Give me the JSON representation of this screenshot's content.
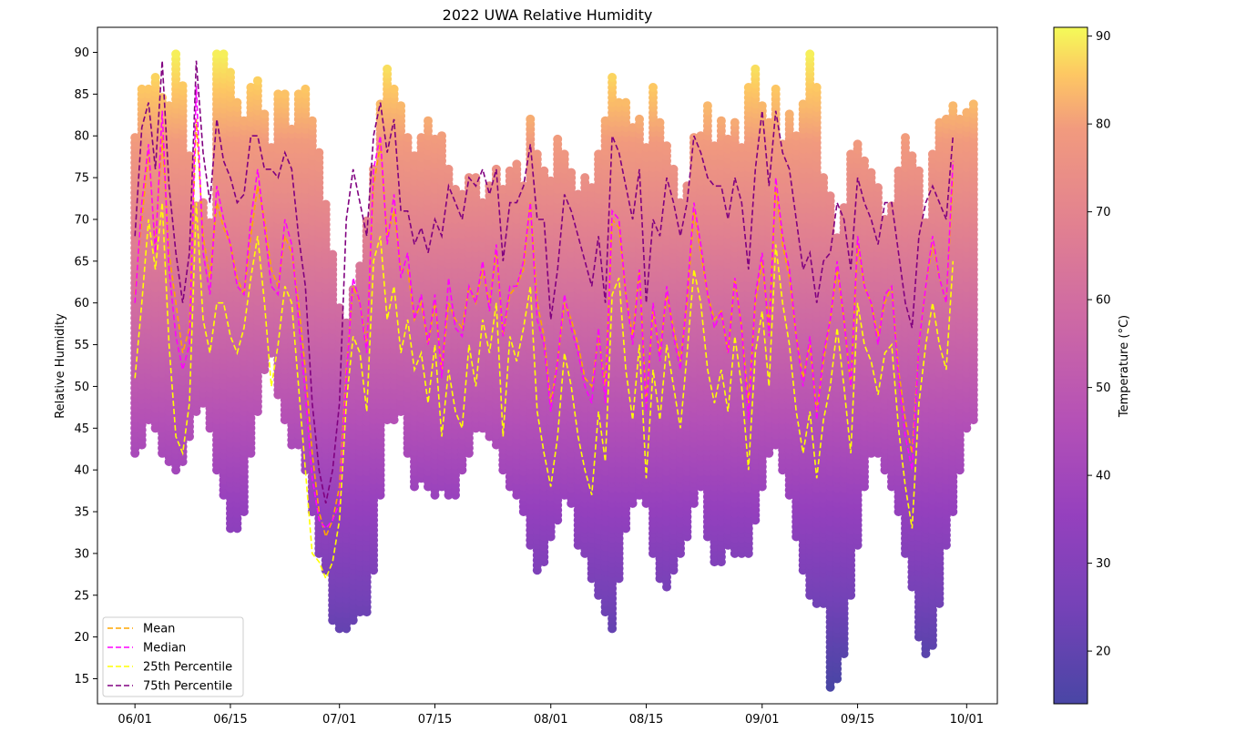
{
  "chart_data": {
    "type": "scatter",
    "title": "2022 UWA Relative Humidity",
    "xlabel": "",
    "ylabel": "Relative Humidity",
    "colorbar_label": "Temperature (°C)",
    "colormap": "plasma",
    "x_ticks": [
      "06/01",
      "06/15",
      "07/01",
      "07/15",
      "08/01",
      "08/15",
      "09/01",
      "09/15",
      "10/01"
    ],
    "x_tick_days": [
      0,
      14,
      30,
      44,
      61,
      75,
      92,
      106,
      122
    ],
    "x_range_days": [
      -5.5,
      126.5
    ],
    "y_ticks": [
      15,
      20,
      25,
      30,
      35,
      40,
      45,
      50,
      55,
      60,
      65,
      70,
      75,
      80,
      85,
      90
    ],
    "ylim": [
      12,
      93
    ],
    "colorbar_ticks": [
      20,
      30,
      40,
      50,
      60,
      70,
      80,
      90
    ],
    "colorbar_range": [
      14,
      91
    ],
    "legend_position": "lower-left",
    "grid": false,
    "daily_ranges": {
      "description_min": [
        42,
        43,
        46,
        45,
        42,
        41,
        40,
        41,
        44,
        47,
        48,
        45,
        40,
        37,
        33,
        33,
        35,
        42,
        47,
        52,
        54,
        49,
        46,
        43,
        43,
        40,
        35,
        30,
        28,
        22,
        21,
        21,
        22,
        23,
        23,
        28,
        37,
        46,
        46,
        47,
        42,
        38,
        39,
        38,
        37,
        38,
        37,
        37,
        40,
        42,
        45,
        45,
        44,
        43,
        40,
        38,
        37,
        35,
        31,
        28,
        29,
        32,
        34,
        37,
        36,
        31,
        30,
        27,
        25,
        23,
        21,
        27,
        33,
        36,
        37,
        36,
        30,
        27,
        26,
        28,
        30,
        32,
        36,
        38,
        32,
        29,
        29,
        31,
        30,
        30,
        30,
        34,
        38,
        42,
        43,
        40,
        37,
        32,
        28,
        25,
        24,
        24,
        14,
        15,
        18,
        25,
        31,
        38,
        42,
        42,
        40,
        38,
        35,
        30,
        26,
        20,
        18,
        19,
        24,
        31,
        35,
        40,
        45,
        46
      ],
      "description_max": [
        80,
        86,
        86,
        87,
        85,
        84,
        90,
        86,
        78,
        72,
        72,
        70,
        90,
        90,
        88,
        84,
        82,
        86,
        87,
        83,
        79,
        85,
        85,
        81,
        85,
        86,
        82,
        78,
        72,
        66,
        60,
        58,
        62,
        65,
        70,
        76,
        84,
        88,
        86,
        84,
        80,
        78,
        80,
        82,
        80,
        80,
        76,
        74,
        73,
        75,
        75,
        72,
        74,
        76,
        74,
        76,
        77,
        74,
        82,
        78,
        76,
        75,
        80,
        78,
        76,
        73,
        75,
        74,
        78,
        82,
        87,
        84,
        84,
        81,
        82,
        79,
        86,
        82,
        79,
        76,
        72,
        74,
        80,
        80,
        84,
        79,
        82,
        80,
        82,
        79,
        86,
        88,
        84,
        82,
        86,
        79,
        83,
        80,
        84,
        90,
        86,
        75,
        73,
        68,
        72,
        78,
        79,
        77,
        76,
        74,
        70,
        72,
        76,
        80,
        78,
        76,
        70,
        78,
        82,
        82,
        84,
        82,
        83,
        84
      ]
    },
    "series": [
      {
        "name": "Mean",
        "color": "#FFA500",
        "x_days": [
          0,
          1,
          2,
          3,
          4,
          5,
          6,
          7,
          8,
          9,
          10,
          11,
          12,
          13,
          14,
          15,
          16,
          17,
          18,
          19,
          20,
          21,
          22,
          23,
          24,
          25,
          26,
          27,
          28,
          29,
          30,
          31,
          32,
          33,
          34,
          35,
          36,
          37,
          38,
          39,
          40,
          41,
          42,
          43,
          44,
          45,
          46,
          47,
          48,
          49,
          50,
          51,
          52,
          53,
          54,
          55,
          56,
          57,
          58,
          59,
          60,
          61,
          62,
          63,
          64,
          65,
          66,
          67,
          68,
          69,
          70,
          71,
          72,
          73,
          74,
          75,
          76,
          77,
          78,
          79,
          80,
          81,
          82,
          83,
          84,
          85,
          86,
          87,
          88,
          89,
          90,
          91,
          92,
          93,
          94,
          95,
          96,
          97,
          98,
          99,
          100,
          101,
          102,
          103,
          104,
          105,
          106,
          107,
          108,
          109,
          110,
          111,
          112,
          113,
          114,
          115,
          116,
          117,
          118,
          119,
          120
        ],
        "values": [
          61,
          70,
          78,
          67,
          80,
          66,
          60,
          54,
          57,
          82,
          68,
          63,
          72,
          69,
          67,
          63,
          61,
          68,
          74,
          70,
          64,
          62,
          68,
          66,
          60,
          52,
          42,
          35,
          32,
          34,
          38,
          52,
          62,
          60,
          55,
          74,
          79,
          68,
          71,
          64,
          64,
          58,
          60,
          55,
          60,
          52,
          60,
          58,
          57,
          62,
          60,
          64,
          60,
          66,
          56,
          61,
          62,
          64,
          72,
          60,
          56,
          48,
          53,
          60,
          58,
          55,
          51,
          50,
          56,
          50,
          70,
          69,
          61,
          56,
          64,
          48,
          59,
          54,
          61,
          57,
          53,
          60,
          71,
          66,
          61,
          58,
          59,
          54,
          63,
          57,
          48,
          60,
          65,
          57,
          74,
          67,
          63,
          56,
          51,
          55,
          47,
          53,
          58,
          64,
          58,
          50,
          67,
          62,
          60,
          56,
          60,
          62,
          52,
          46,
          42,
          55,
          62,
          67,
          63,
          60,
          75
        ]
      },
      {
        "name": "Median",
        "color": "#FF00FF",
        "x_days": [
          0,
          1,
          2,
          3,
          4,
          5,
          6,
          7,
          8,
          9,
          10,
          11,
          12,
          13,
          14,
          15,
          16,
          17,
          18,
          19,
          20,
          21,
          22,
          23,
          24,
          25,
          26,
          27,
          28,
          29,
          30,
          31,
          32,
          33,
          34,
          35,
          36,
          37,
          38,
          39,
          40,
          41,
          42,
          43,
          44,
          45,
          46,
          47,
          48,
          49,
          50,
          51,
          52,
          53,
          54,
          55,
          56,
          57,
          58,
          59,
          60,
          61,
          62,
          63,
          64,
          65,
          66,
          67,
          68,
          69,
          70,
          71,
          72,
          73,
          74,
          75,
          76,
          77,
          78,
          79,
          80,
          81,
          82,
          83,
          84,
          85,
          86,
          87,
          88,
          89,
          90,
          91,
          92,
          93,
          94,
          95,
          96,
          97,
          98,
          99,
          100,
          101,
          102,
          103,
          104,
          105,
          106,
          107,
          108,
          109,
          110,
          111,
          112,
          113,
          114,
          115,
          116,
          117,
          118,
          119,
          120
        ],
        "values": [
          60,
          72,
          79,
          66,
          83,
          64,
          56,
          52,
          55,
          86,
          66,
          61,
          74,
          70,
          67,
          62,
          61,
          70,
          76,
          69,
          62,
          61,
          70,
          67,
          58,
          49,
          39,
          34,
          33,
          34,
          36,
          51,
          63,
          60,
          54,
          76,
          80,
          67,
          73,
          63,
          66,
          58,
          61,
          55,
          61,
          51,
          63,
          57,
          56,
          62,
          60,
          65,
          59,
          67,
          56,
          62,
          62,
          65,
          72,
          58,
          55,
          47,
          53,
          61,
          57,
          54,
          50,
          48,
          57,
          48,
          71,
          70,
          61,
          55,
          64,
          47,
          60,
          53,
          62,
          56,
          52,
          61,
          72,
          67,
          61,
          57,
          59,
          54,
          63,
          57,
          46,
          61,
          66,
          56,
          75,
          68,
          64,
          56,
          50,
          56,
          46,
          54,
          58,
          65,
          58,
          50,
          68,
          62,
          60,
          55,
          61,
          62,
          51,
          44,
          40,
          55,
          62,
          68,
          63,
          60,
          77
        ]
      },
      {
        "name": "25th Percentile",
        "color": "#FFFF00",
        "x_days": [
          0,
          1,
          2,
          3,
          4,
          5,
          6,
          7,
          8,
          9,
          10,
          11,
          12,
          13,
          14,
          15,
          16,
          17,
          18,
          19,
          20,
          21,
          22,
          23,
          24,
          25,
          26,
          27,
          28,
          29,
          30,
          31,
          32,
          33,
          34,
          35,
          36,
          37,
          38,
          39,
          40,
          41,
          42,
          43,
          44,
          45,
          46,
          47,
          48,
          49,
          50,
          51,
          52,
          53,
          54,
          55,
          56,
          57,
          58,
          59,
          60,
          61,
          62,
          63,
          64,
          65,
          66,
          67,
          68,
          69,
          70,
          71,
          72,
          73,
          74,
          75,
          76,
          77,
          78,
          79,
          80,
          81,
          82,
          83,
          84,
          85,
          86,
          87,
          88,
          89,
          90,
          91,
          92,
          93,
          94,
          95,
          96,
          97,
          98,
          99,
          100,
          101,
          102,
          103,
          104,
          105,
          106,
          107,
          108,
          109,
          110,
          111,
          112,
          113,
          114,
          115,
          116,
          117,
          118,
          119,
          120
        ],
        "values": [
          51,
          60,
          70,
          64,
          72,
          55,
          44,
          42,
          48,
          72,
          58,
          54,
          60,
          60,
          56,
          54,
          57,
          63,
          68,
          60,
          50,
          55,
          62,
          60,
          50,
          40,
          30,
          29,
          27,
          29,
          34,
          48,
          56,
          54,
          47,
          65,
          68,
          58,
          62,
          54,
          58,
          52,
          54,
          48,
          55,
          44,
          52,
          47,
          45,
          55,
          50,
          58,
          54,
          60,
          44,
          56,
          53,
          57,
          62,
          47,
          42,
          38,
          44,
          54,
          50,
          44,
          40,
          37,
          47,
          41,
          61,
          63,
          52,
          46,
          55,
          39,
          52,
          46,
          55,
          50,
          45,
          54,
          64,
          60,
          52,
          48,
          52,
          47,
          56,
          50,
          40,
          54,
          59,
          50,
          67,
          60,
          55,
          47,
          42,
          47,
          39,
          46,
          50,
          57,
          50,
          42,
          60,
          55,
          53,
          49,
          54,
          55,
          45,
          38,
          33,
          48,
          55,
          60,
          55,
          52,
          65
        ]
      },
      {
        "name": "75th Percentile",
        "color": "#800080",
        "x_days": [
          0,
          1,
          2,
          3,
          4,
          5,
          6,
          7,
          8,
          9,
          10,
          11,
          12,
          13,
          14,
          15,
          16,
          17,
          18,
          19,
          20,
          21,
          22,
          23,
          24,
          25,
          26,
          27,
          28,
          29,
          30,
          31,
          32,
          33,
          34,
          35,
          36,
          37,
          38,
          39,
          40,
          41,
          42,
          43,
          44,
          45,
          46,
          47,
          48,
          49,
          50,
          51,
          52,
          53,
          54,
          55,
          56,
          57,
          58,
          59,
          60,
          61,
          62,
          63,
          64,
          65,
          66,
          67,
          68,
          69,
          70,
          71,
          72,
          73,
          74,
          75,
          76,
          77,
          78,
          79,
          80,
          81,
          82,
          83,
          84,
          85,
          86,
          87,
          88,
          89,
          90,
          91,
          92,
          93,
          94,
          95,
          96,
          97,
          98,
          99,
          100,
          101,
          102,
          103,
          104,
          105,
          106,
          107,
          108,
          109,
          110,
          111,
          112,
          113,
          114,
          115,
          116,
          117,
          118,
          119,
          120
        ],
        "values": [
          68,
          81,
          84,
          76,
          89,
          74,
          66,
          60,
          66,
          89,
          78,
          72,
          82,
          77,
          75,
          72,
          73,
          80,
          80,
          76,
          76,
          75,
          78,
          76,
          68,
          62,
          48,
          40,
          36,
          40,
          48,
          70,
          76,
          72,
          68,
          80,
          84,
          78,
          82,
          71,
          71,
          67,
          69,
          66,
          70,
          68,
          74,
          72,
          70,
          75,
          74,
          76,
          73,
          76,
          65,
          72,
          72,
          74,
          79,
          70,
          70,
          58,
          64,
          73,
          71,
          68,
          65,
          62,
          68,
          60,
          80,
          78,
          74,
          70,
          76,
          60,
          70,
          68,
          75,
          72,
          68,
          72,
          80,
          78,
          75,
          74,
          74,
          70,
          75,
          72,
          64,
          76,
          83,
          74,
          83,
          78,
          76,
          70,
          64,
          66,
          60,
          65,
          66,
          72,
          70,
          64,
          75,
          72,
          70,
          67,
          72,
          72,
          66,
          60,
          57,
          68,
          72,
          74,
          72,
          70,
          80
        ]
      }
    ]
  }
}
